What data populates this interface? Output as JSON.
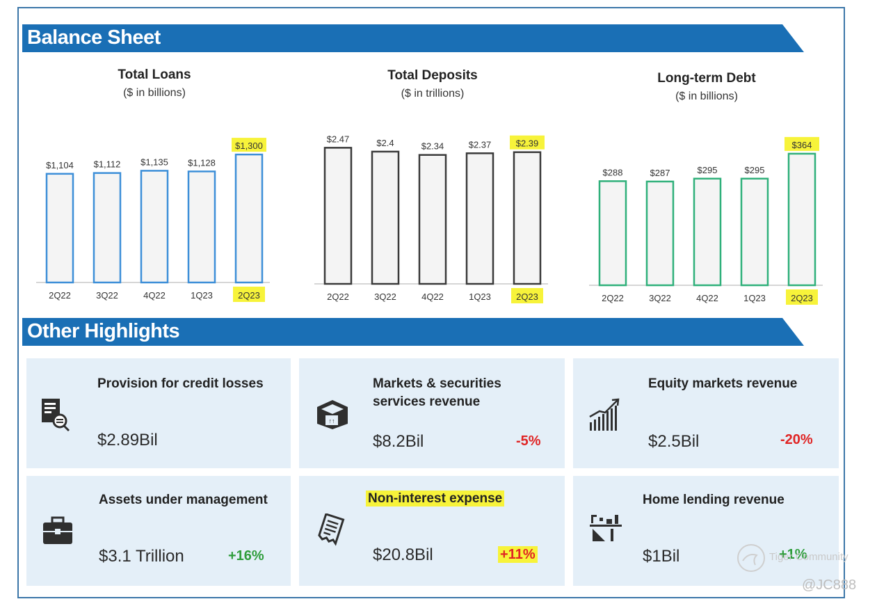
{
  "sections": {
    "balance_sheet_title": "Balance Sheet",
    "other_highlights_title": "Other Highlights"
  },
  "colors": {
    "banner": "#1a6fb5",
    "loans_bar": "#3d8fd8",
    "deposits_bar": "#3a3a3a",
    "debt_bar": "#2fb07a",
    "highlight": "#f7f33a"
  },
  "chart_data": [
    {
      "type": "bar",
      "title": "Total Loans",
      "subtitle": "($ in billions)",
      "categories": [
        "2Q22",
        "3Q22",
        "4Q22",
        "1Q23",
        "2Q23"
      ],
      "values": [
        1104,
        1112,
        1135,
        1128,
        1300
      ],
      "labels": [
        "$1,104",
        "$1,112",
        "$1,135",
        "$1,128",
        "$1,300"
      ],
      "highlighted": [
        false,
        false,
        false,
        false,
        true
      ],
      "ylim": [
        0,
        1350
      ]
    },
    {
      "type": "bar",
      "title": "Total Deposits",
      "subtitle": "($ in trillions)",
      "categories": [
        "2Q22",
        "3Q22",
        "4Q22",
        "1Q23",
        "2Q23"
      ],
      "values": [
        2.47,
        2.4,
        2.34,
        2.37,
        2.39
      ],
      "labels": [
        "$2.47",
        "$2.4",
        "$2.34",
        "$2.37",
        "$2.39"
      ],
      "highlighted": [
        false,
        false,
        false,
        false,
        true
      ],
      "ylim": [
        0,
        2.5
      ]
    },
    {
      "type": "bar",
      "title": "Long-term Debt",
      "subtitle": "($ in billions)",
      "categories": [
        "2Q22",
        "3Q22",
        "4Q22",
        "1Q23",
        "2Q23"
      ],
      "values": [
        288,
        287,
        295,
        295,
        364
      ],
      "labels": [
        "$288",
        "$287",
        "$295",
        "$295",
        "$364"
      ],
      "highlighted": [
        false,
        false,
        false,
        false,
        true
      ],
      "ylim": [
        0,
        385
      ]
    }
  ],
  "highlights": [
    {
      "title": "Provision for credit losses",
      "value": "$2.89Bil",
      "change": "",
      "icon": "document-search-icon"
    },
    {
      "title": "Markets & securities services revenue",
      "value": "$8.2Bil",
      "change": "-5%",
      "icon": "box-icon"
    },
    {
      "title": "Equity markets revenue",
      "value": "$2.5Bil",
      "change": "-20%",
      "icon": "growth-chart-icon"
    },
    {
      "title": "Assets under management",
      "value": "$3.1 Trillion",
      "change": "+16%",
      "icon": "briefcase-icon"
    },
    {
      "title": "Non-interest expense",
      "value": "$20.8Bil",
      "change": "+11%",
      "icon": "receipt-icon"
    },
    {
      "title": "Home lending revenue",
      "value": "$1Bil",
      "change": "+1%",
      "icon": "home-lending-icon"
    }
  ],
  "watermark": {
    "brand": "Tiger Community",
    "handle": "@JC888"
  }
}
